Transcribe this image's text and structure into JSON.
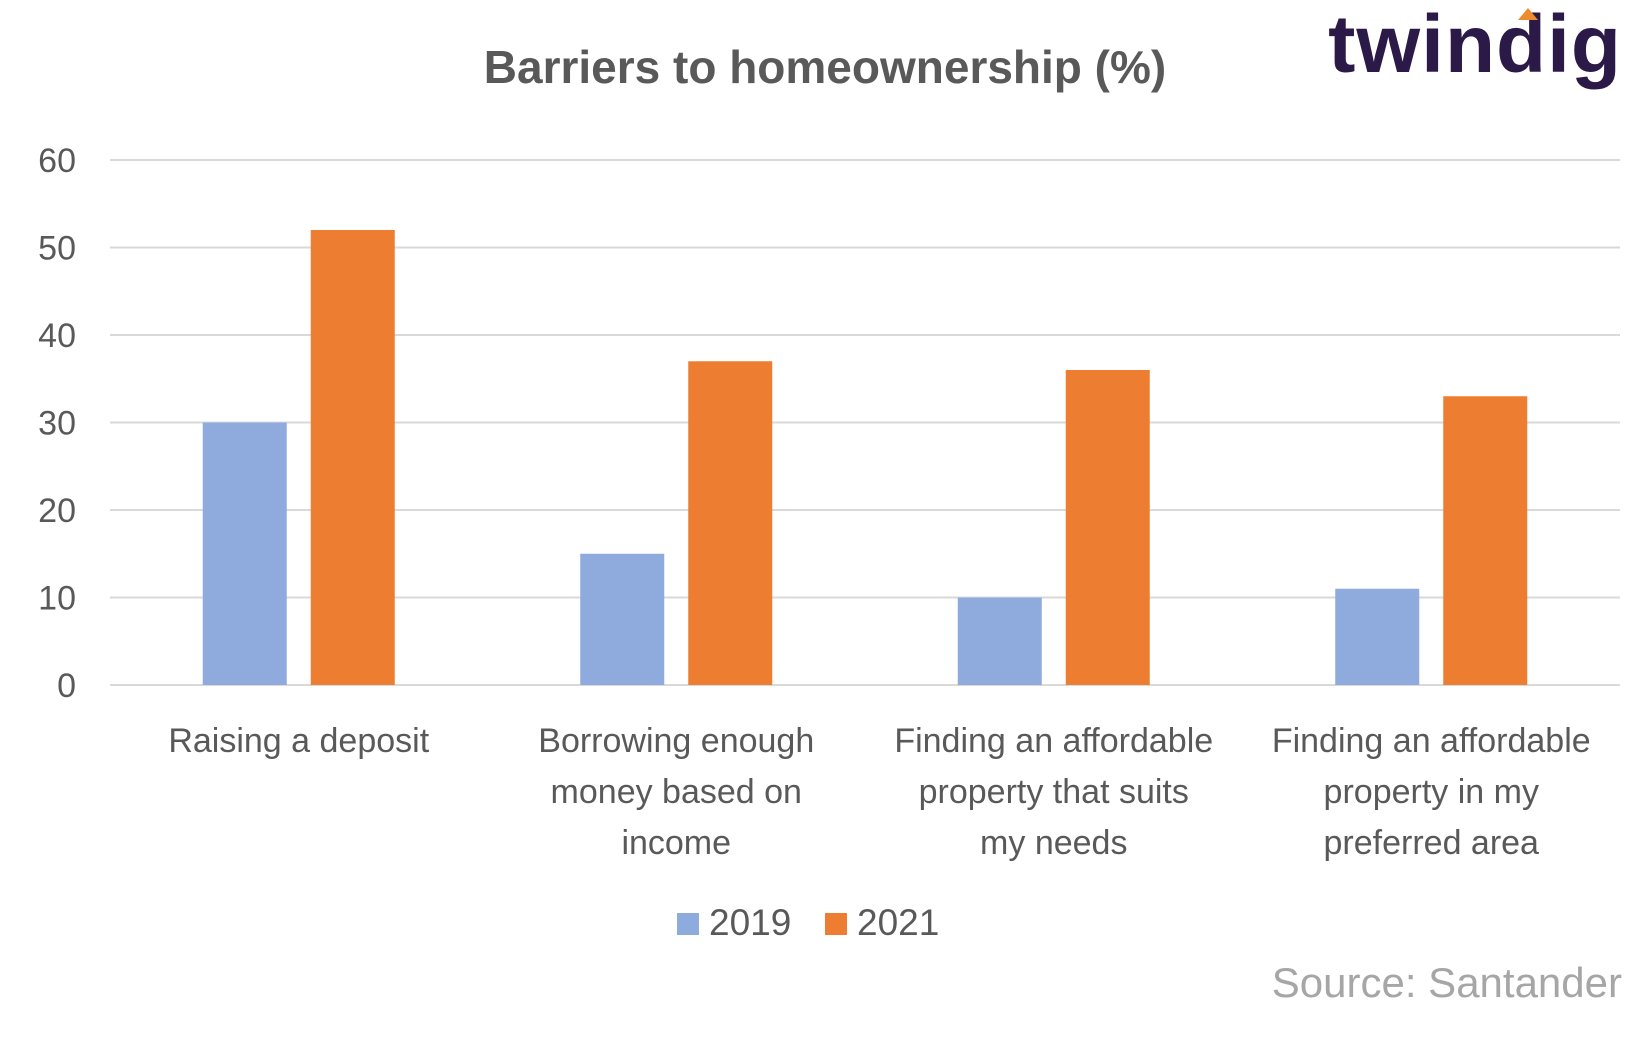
{
  "brand": {
    "logo_text": "twindig",
    "accent_color": "#f08b2d",
    "text_color": "#2b1a47"
  },
  "source_text": "Source: Santander",
  "chart_data": {
    "type": "bar",
    "title": "Barriers to homeownership (%)",
    "xlabel": "",
    "ylabel": "",
    "ylim": [
      0,
      60
    ],
    "yticks": [
      0,
      10,
      20,
      30,
      40,
      50,
      60
    ],
    "grid": true,
    "legend_position": "bottom",
    "categories": [
      [
        "Raising a deposit"
      ],
      [
        "Borrowing enough",
        "money based on",
        "income"
      ],
      [
        "Finding an affordable",
        "property that suits",
        "my needs"
      ],
      [
        "Finding an affordable",
        "property in my",
        "preferred area"
      ]
    ],
    "series": [
      {
        "name": "2019",
        "color": "#8faadc",
        "values": [
          30,
          15,
          10,
          11
        ]
      },
      {
        "name": "2021",
        "color": "#ed7d31",
        "values": [
          52,
          37,
          36,
          33
        ]
      }
    ]
  }
}
